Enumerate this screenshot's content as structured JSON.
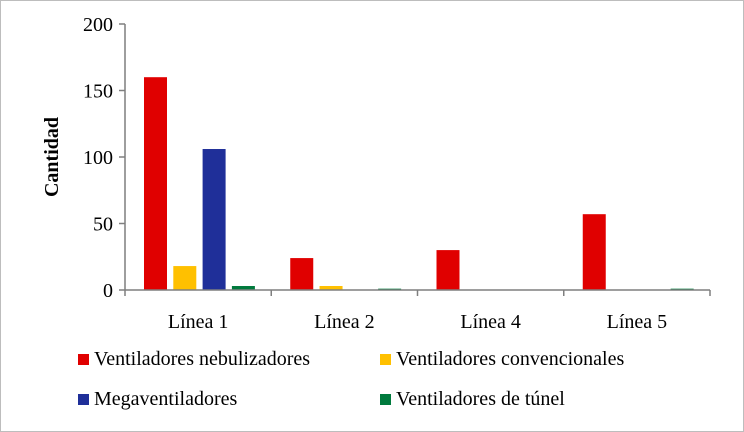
{
  "chart_data": {
    "type": "bar",
    "title": "",
    "xlabel": "",
    "ylabel": "Cantidad",
    "ylim": [
      0,
      200
    ],
    "yticks": [
      0,
      50,
      100,
      150,
      200
    ],
    "grid": false,
    "legend_position": "bottom",
    "categories": [
      "Línea 1",
      "Línea 2",
      "Línea 4",
      "Línea 5"
    ],
    "series": [
      {
        "name": "Ventiladores nebulizadores",
        "color": "#e00000",
        "values": [
          160,
          24,
          30,
          57
        ]
      },
      {
        "name": "Ventiladores convencionales",
        "color": "#ffc000",
        "values": [
          18,
          3,
          0,
          0
        ]
      },
      {
        "name": "Megaventiladores",
        "color": "#1f2f99",
        "values": [
          106,
          0,
          0,
          0
        ]
      },
      {
        "name": "Ventiladores de túnel",
        "color": "#007a3d",
        "values": [
          3,
          1,
          0,
          1
        ]
      }
    ]
  }
}
